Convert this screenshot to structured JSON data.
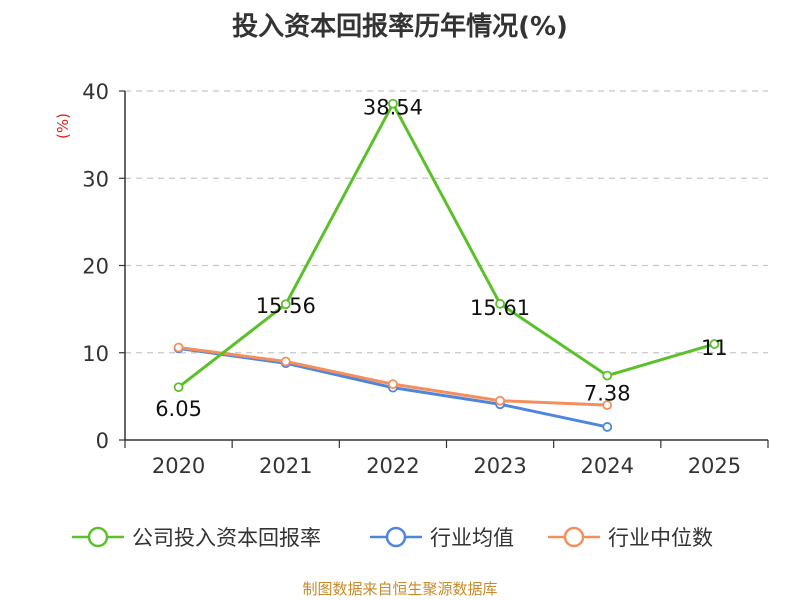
{
  "chart_data": {
    "type": "line",
    "title": "投入资本回报率历年情况(%)",
    "ylabel": "(%)",
    "xlabel": "",
    "categories": [
      "2020",
      "2021",
      "2022",
      "2023",
      "2024",
      "2025"
    ],
    "ylim": [
      0,
      40
    ],
    "yticks": [
      0,
      10,
      20,
      30,
      40
    ],
    "grid": true,
    "legend_position": "bottom",
    "series": [
      {
        "name": "公司投入资本回报率",
        "color": "#5cc02b",
        "values": [
          6.05,
          15.56,
          38.54,
          15.61,
          7.38,
          11
        ],
        "labels": [
          "6.05",
          "15.56",
          "38.54",
          "15.61",
          "7.38",
          "11"
        ]
      },
      {
        "name": "行业均值",
        "color": "#4f86dd",
        "values": [
          10.5,
          8.8,
          6.0,
          4.1,
          1.5,
          null
        ]
      },
      {
        "name": "行业中位数",
        "color": "#f48f5d",
        "values": [
          10.6,
          9.0,
          6.4,
          4.5,
          4.0,
          null
        ]
      }
    ]
  },
  "source": "制图数据来自恒生聚源数据库"
}
